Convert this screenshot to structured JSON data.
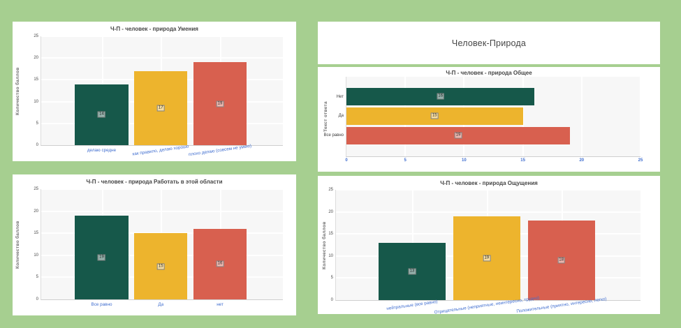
{
  "page": {
    "background_color": "#a6cf90",
    "panel_color": "#ffffff"
  },
  "header_panel": {
    "title": "Человек-Природа"
  },
  "palette": {
    "teal": "#16584a",
    "yellow": "#edb42d",
    "red": "#d8604f",
    "axis_label_blue": "#3f6dcf"
  },
  "chart_data": [
    {
      "type": "bar",
      "orientation": "vertical",
      "title": "Ч-П - человек - природа Умения",
      "ylabel": "Количество баллов",
      "xlabel": "",
      "categories": [
        "делаю средне",
        "как правило, делаю хорошо",
        "плохо делаю (совсем не умею)"
      ],
      "values": [
        14,
        17,
        19
      ],
      "value_labels": [
        "14",
        "17",
        "19"
      ],
      "bar_colors": [
        "#16584a",
        "#edb42d",
        "#d8604f"
      ],
      "ylim": [
        0,
        25
      ],
      "yticks": [
        0,
        5,
        10,
        15,
        20,
        25
      ],
      "grid": true,
      "legend": "none"
    },
    {
      "type": "bar",
      "orientation": "horizontal",
      "title": "Ч-П - человек - природа Общее",
      "ylabel": "Текст ответа",
      "xlabel": "",
      "categories": [
        "Нет",
        "Да",
        "Все равно"
      ],
      "values": [
        16,
        15,
        19
      ],
      "value_labels": [
        "16",
        "15",
        "19"
      ],
      "bar_colors": [
        "#16584a",
        "#edb42d",
        "#d8604f"
      ],
      "xlim": [
        0,
        25
      ],
      "xticks": [
        0,
        5,
        10,
        15,
        20,
        25
      ],
      "grid": true,
      "legend": "none"
    },
    {
      "type": "bar",
      "orientation": "vertical",
      "title": "Ч-П - человек - природа Работать в этой области",
      "ylabel": "Количество баллов",
      "xlabel": "",
      "categories": [
        "Все равно",
        "Да",
        "нет"
      ],
      "values": [
        19,
        15,
        16
      ],
      "value_labels": [
        "19",
        "15",
        "16"
      ],
      "bar_colors": [
        "#16584a",
        "#edb42d",
        "#d8604f"
      ],
      "ylim": [
        0,
        25
      ],
      "yticks": [
        0,
        5,
        10,
        15,
        20,
        25
      ],
      "grid": true,
      "legend": "none"
    },
    {
      "type": "bar",
      "orientation": "vertical",
      "title": "Ч-П - человек - природа Ощущения",
      "ylabel": "Количество баллов",
      "xlabel": "",
      "categories": [
        "нейтральные (все равно)",
        "Отрицательные (неприятные, неинтересно, трудно)",
        "Положительные (приятно, интересно, легко)"
      ],
      "values": [
        13,
        19,
        18
      ],
      "value_labels": [
        "13",
        "19",
        "18"
      ],
      "bar_colors": [
        "#16584a",
        "#edb42d",
        "#d8604f"
      ],
      "ylim": [
        0,
        25
      ],
      "yticks": [
        0,
        5,
        10,
        15,
        20,
        25
      ],
      "grid": true,
      "legend": "none"
    }
  ]
}
